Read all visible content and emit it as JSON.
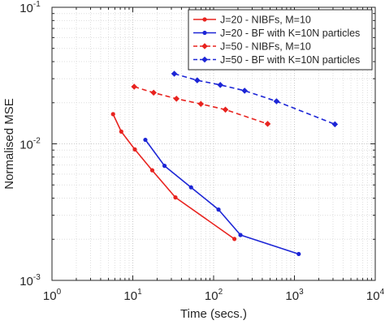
{
  "chart_data": {
    "type": "line",
    "xlabel": "Time (secs.)",
    "ylabel": "Normalised MSE",
    "xscale": "log",
    "yscale": "log",
    "xlim": [
      1,
      10000
    ],
    "ylim": [
      0.001,
      0.1
    ],
    "x_ticks": [
      {
        "value": 1,
        "base": "10",
        "exp": "0"
      },
      {
        "value": 10,
        "base": "10",
        "exp": "1"
      },
      {
        "value": 100,
        "base": "10",
        "exp": "2"
      },
      {
        "value": 1000,
        "base": "10",
        "exp": "3"
      },
      {
        "value": 10000,
        "base": "10",
        "exp": "4"
      }
    ],
    "y_ticks": [
      {
        "value": 0.001,
        "base": "10",
        "exp": "-3"
      },
      {
        "value": 0.01,
        "base": "10",
        "exp": "-2"
      },
      {
        "value": 0.1,
        "base": "10",
        "exp": "-1"
      }
    ],
    "grid": "on (major and minor, dotted)",
    "legend_position": "top-right",
    "series": [
      {
        "name": "J=20 - NIBFs, M=10",
        "color": "#e8231f",
        "line_style": "solid",
        "marker": "dot",
        "x": [
          5.7,
          7.2,
          10.6,
          17.4,
          33.7,
          181
        ],
        "y": [
          0.0165,
          0.0123,
          0.0091,
          0.0064,
          0.00405,
          0.00201
        ]
      },
      {
        "name": "J=20 - BF with K=10N particles",
        "color": "#1c25d6",
        "line_style": "solid",
        "marker": "dot",
        "x": [
          14.3,
          24.7,
          52.6,
          115,
          215,
          1130
        ],
        "y": [
          0.0107,
          0.0069,
          0.0048,
          0.0033,
          0.00215,
          0.00156
        ]
      },
      {
        "name": "J=50 - NIBFs, M=10",
        "color": "#e8231f",
        "line_style": "dashed",
        "marker": "diamond",
        "x": [
          10.4,
          18.1,
          34.7,
          69.5,
          140,
          466
        ],
        "y": [
          0.0262,
          0.0237,
          0.0214,
          0.0196,
          0.0178,
          0.014
        ]
      },
      {
        "name": "J=50 - BF with K=10N particles",
        "color": "#1c25d6",
        "line_style": "dashed",
        "marker": "diamond",
        "x": [
          32.6,
          62.7,
          121,
          242,
          600,
          3170
        ],
        "y": [
          0.0326,
          0.0292,
          0.027,
          0.0245,
          0.0205,
          0.0139
        ]
      }
    ]
  }
}
